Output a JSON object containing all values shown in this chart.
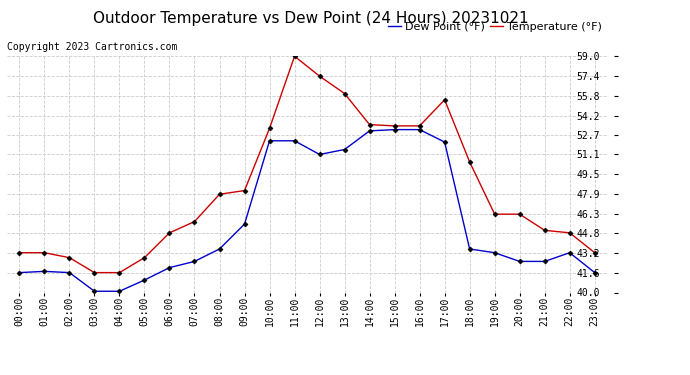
{
  "title": "Outdoor Temperature vs Dew Point (24 Hours) 20231021",
  "copyright": "Copyright 2023 Cartronics.com",
  "legend_dew": "Dew Point (°F)",
  "legend_temp": "Temperature (°F)",
  "hours": [
    "00:00",
    "01:00",
    "02:00",
    "03:00",
    "04:00",
    "05:00",
    "06:00",
    "07:00",
    "08:00",
    "09:00",
    "10:00",
    "11:00",
    "12:00",
    "13:00",
    "14:00",
    "15:00",
    "16:00",
    "17:00",
    "18:00",
    "19:00",
    "20:00",
    "21:00",
    "22:00",
    "23:00"
  ],
  "temperature": [
    43.2,
    43.2,
    42.8,
    41.6,
    41.6,
    42.8,
    44.8,
    45.7,
    47.9,
    48.2,
    53.2,
    59.0,
    57.4,
    56.0,
    53.5,
    53.4,
    53.4,
    55.5,
    50.5,
    46.3,
    46.3,
    45.0,
    44.8,
    43.2
  ],
  "dew_point": [
    41.6,
    41.7,
    41.6,
    40.1,
    40.1,
    41.0,
    42.0,
    42.5,
    43.5,
    45.5,
    52.2,
    52.2,
    51.1,
    51.5,
    53.0,
    53.1,
    53.1,
    52.1,
    43.5,
    43.2,
    42.5,
    42.5,
    43.2,
    41.6
  ],
  "temp_color": "#cc0000",
  "dew_color": "#0000cc",
  "ylim": [
    40.0,
    59.0
  ],
  "yticks": [
    40.0,
    41.6,
    43.2,
    44.8,
    46.3,
    47.9,
    49.5,
    51.1,
    52.7,
    54.2,
    55.8,
    57.4,
    59.0
  ],
  "grid_color": "#cccccc",
  "bg_color": "#ffffff",
  "title_fontsize": 11,
  "tick_fontsize": 7,
  "legend_fontsize": 8,
  "copyright_fontsize": 7
}
